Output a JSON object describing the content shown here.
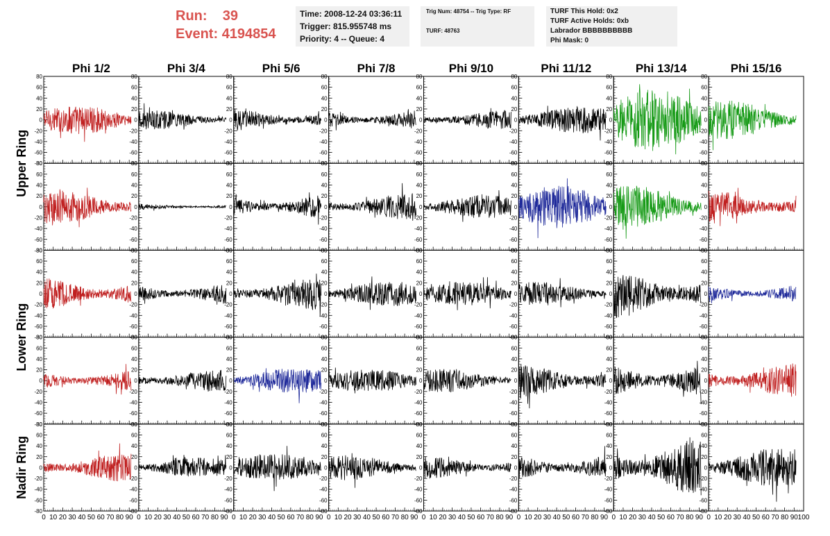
{
  "header": {
    "run_label": "Run:",
    "run_value": "39",
    "event_label": "Event:",
    "event_value": "4194854",
    "time_line": "Time: 2008-12-24 03:36:11",
    "trigger_line": "Trigger: 815.955748 ms",
    "priority_line": "Priority: 4 -- Queue: 4",
    "trig_line": "Trig Num: 48754 -- Trig Type: RF",
    "turf_line": "TURF: 48763",
    "turf_hold": "TURF This Hold: 0x2",
    "turf_active": "TURF Active Holds: 0xb",
    "labrador": "Labrador BBBBBBBBBB",
    "phi_mask": "Phi Mask: 0"
  },
  "chart_data": {
    "type": "line",
    "title": "",
    "columns": [
      "Phi 1/2",
      "Phi 3/4",
      "Phi 5/6",
      "Phi 7/8",
      "Phi 9/10",
      "Phi 11/12",
      "Phi 13/14",
      "Phi 15/16"
    ],
    "ring_labels": [
      {
        "label": "Upper Ring",
        "rows": [
          0,
          1
        ]
      },
      {
        "label": "Lower Ring",
        "rows": [
          2,
          3
        ]
      },
      {
        "label": "Nadir Ring",
        "rows": [
          4
        ]
      }
    ],
    "xlim": [
      0,
      100
    ],
    "ylim": [
      -80,
      80
    ],
    "x_ticks": [
      0,
      10,
      20,
      30,
      40,
      50,
      60,
      70,
      80,
      90,
      100
    ],
    "y_ticks": [
      -80,
      -60,
      -40,
      -20,
      0,
      20,
      40,
      60,
      80
    ],
    "n_samples": 260,
    "colors": {
      "black": "#000000",
      "red": "#c02020",
      "green": "#169a16",
      "blue": "#1f2a9a"
    },
    "grid": false,
    "panels": [
      [
        {
          "color": "red",
          "amplitude": 15
        },
        {
          "color": "black",
          "amplitude": 10
        },
        {
          "color": "black",
          "amplitude": 12
        },
        {
          "color": "black",
          "amplitude": 11
        },
        {
          "color": "black",
          "amplitude": 10
        },
        {
          "color": "black",
          "amplitude": 14
        },
        {
          "color": "green",
          "amplitude": 32
        },
        {
          "color": "green",
          "amplitude": 20
        }
      ],
      [
        {
          "color": "red",
          "amplitude": 18
        },
        {
          "color": "black",
          "amplitude": 3
        },
        {
          "color": "black",
          "amplitude": 14
        },
        {
          "color": "black",
          "amplitude": 14
        },
        {
          "color": "black",
          "amplitude": 12
        },
        {
          "color": "blue",
          "amplitude": 22
        },
        {
          "color": "green",
          "amplitude": 22
        },
        {
          "color": "red",
          "amplitude": 18
        }
      ],
      [
        {
          "color": "red",
          "amplitude": 18
        },
        {
          "color": "black",
          "amplitude": 12
        },
        {
          "color": "black",
          "amplitude": 16
        },
        {
          "color": "black",
          "amplitude": 13
        },
        {
          "color": "black",
          "amplitude": 12
        },
        {
          "color": "black",
          "amplitude": 12
        },
        {
          "color": "black",
          "amplitude": 25
        },
        {
          "color": "blue",
          "amplitude": 11
        }
      ],
      [
        {
          "color": "red",
          "amplitude": 12
        },
        {
          "color": "black",
          "amplitude": 12
        },
        {
          "color": "blue",
          "amplitude": 13
        },
        {
          "color": "black",
          "amplitude": 12
        },
        {
          "color": "black",
          "amplitude": 12
        },
        {
          "color": "black",
          "amplitude": 18
        },
        {
          "color": "black",
          "amplitude": 20
        },
        {
          "color": "red",
          "amplitude": 18
        }
      ],
      [
        {
          "color": "red",
          "amplitude": 15
        },
        {
          "color": "black",
          "amplitude": 10
        },
        {
          "color": "black",
          "amplitude": 14
        },
        {
          "color": "black",
          "amplitude": 13
        },
        {
          "color": "black",
          "amplitude": 12
        },
        {
          "color": "black",
          "amplitude": 16
        },
        {
          "color": "black",
          "amplitude": 30
        },
        {
          "color": "black",
          "amplitude": 20
        }
      ]
    ]
  }
}
